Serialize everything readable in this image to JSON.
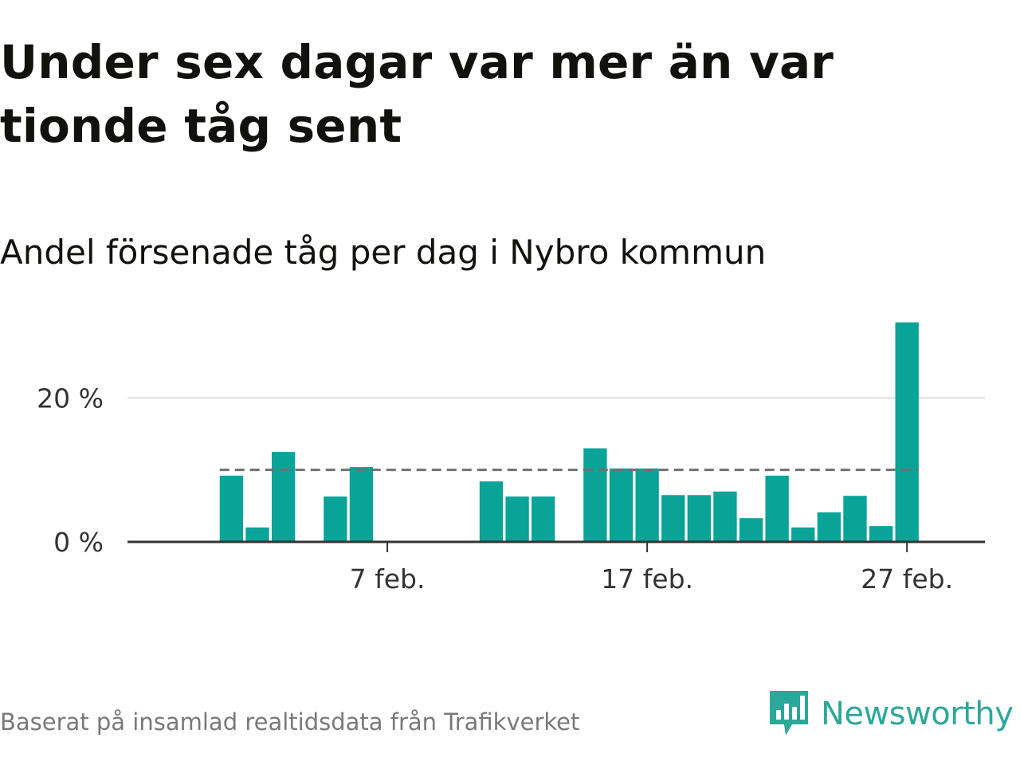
{
  "title": "Under sex dagar var mer än var tionde tåg sent",
  "subtitle": "Andel försenade tåg per dag i Nybro kommun",
  "source": "Baserat på insamlad realtidsdata från Trafikverket",
  "brand": {
    "name": "Newsworthy",
    "icon": "newsworthy-logo-icon"
  },
  "colors": {
    "bar": "#0aa398",
    "reference_line": "#707070",
    "grid": "#dddddd",
    "axis": "#333333"
  },
  "chart_data": {
    "type": "bar",
    "x": [
      "2024-02-01",
      "2024-02-02",
      "2024-02-03",
      "2024-02-04",
      "2024-02-05",
      "2024-02-06",
      "2024-02-07",
      "2024-02-08",
      "2024-02-09",
      "2024-02-10",
      "2024-02-11",
      "2024-02-12",
      "2024-02-13",
      "2024-02-14",
      "2024-02-15",
      "2024-02-16",
      "2024-02-17",
      "2024-02-18",
      "2024-02-19",
      "2024-02-20",
      "2024-02-21",
      "2024-02-22",
      "2024-02-23",
      "2024-02-24",
      "2024-02-25",
      "2024-02-26",
      "2024-02-27",
      "2024-02-28"
    ],
    "values": [
      9.2,
      2.0,
      12.5,
      null,
      6.3,
      10.4,
      null,
      null,
      null,
      null,
      8.4,
      6.3,
      6.3,
      null,
      13.0,
      10.2,
      10.2,
      6.5,
      6.5,
      7.0,
      3.3,
      9.2,
      2.0,
      4.1,
      6.4,
      2.2,
      30.5,
      null
    ],
    "reference_line": 10,
    "reference_style": "dashed",
    "xticks": [
      {
        "date": "2024-02-07",
        "label": "7 feb."
      },
      {
        "date": "2024-02-17",
        "label": "17 feb."
      },
      {
        "date": "2024-02-27",
        "label": "27 feb."
      }
    ],
    "yticks": [
      {
        "value": 0,
        "label": "0 %"
      },
      {
        "value": 20,
        "label": "20 %"
      }
    ],
    "ylim": [
      0,
      31
    ],
    "xlim": [
      "2024-01-28",
      "2024-03-01"
    ],
    "grid": true,
    "unit": "%"
  }
}
